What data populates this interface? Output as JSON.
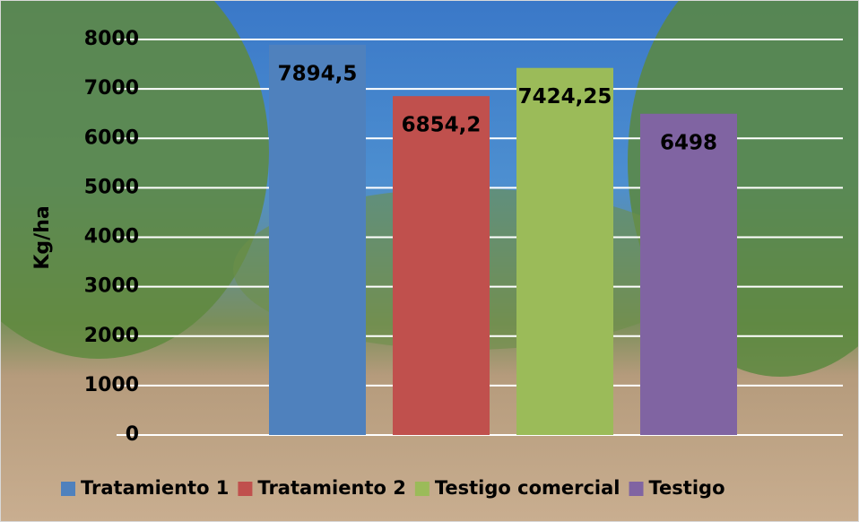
{
  "chart_data": {
    "type": "bar",
    "y_label": "Kg/ha",
    "categories": [
      null
    ],
    "series": [
      {
        "name": "Tratamiento 1",
        "color": "#4f81bd",
        "values": [
          7894.5
        ],
        "value_labels": [
          "7894,5"
        ]
      },
      {
        "name": "Tratamiento 2",
        "color": "#c0504d",
        "values": [
          6854.2
        ],
        "value_labels": [
          "6854,2"
        ]
      },
      {
        "name": "Testigo comercial",
        "color": "#9bbb59",
        "values": [
          7424.25
        ],
        "value_labels": [
          "7424,25"
        ]
      },
      {
        "name": "Testigo",
        "color": "#8064a2",
        "values": [
          6498
        ]
      }
    ],
    "ylim": [
      0,
      8000
    ],
    "yticks": [
      0,
      1000,
      2000,
      3000,
      4000,
      5000,
      6000,
      7000,
      8000
    ],
    "grid": true,
    "legend": "bottom"
  }
}
